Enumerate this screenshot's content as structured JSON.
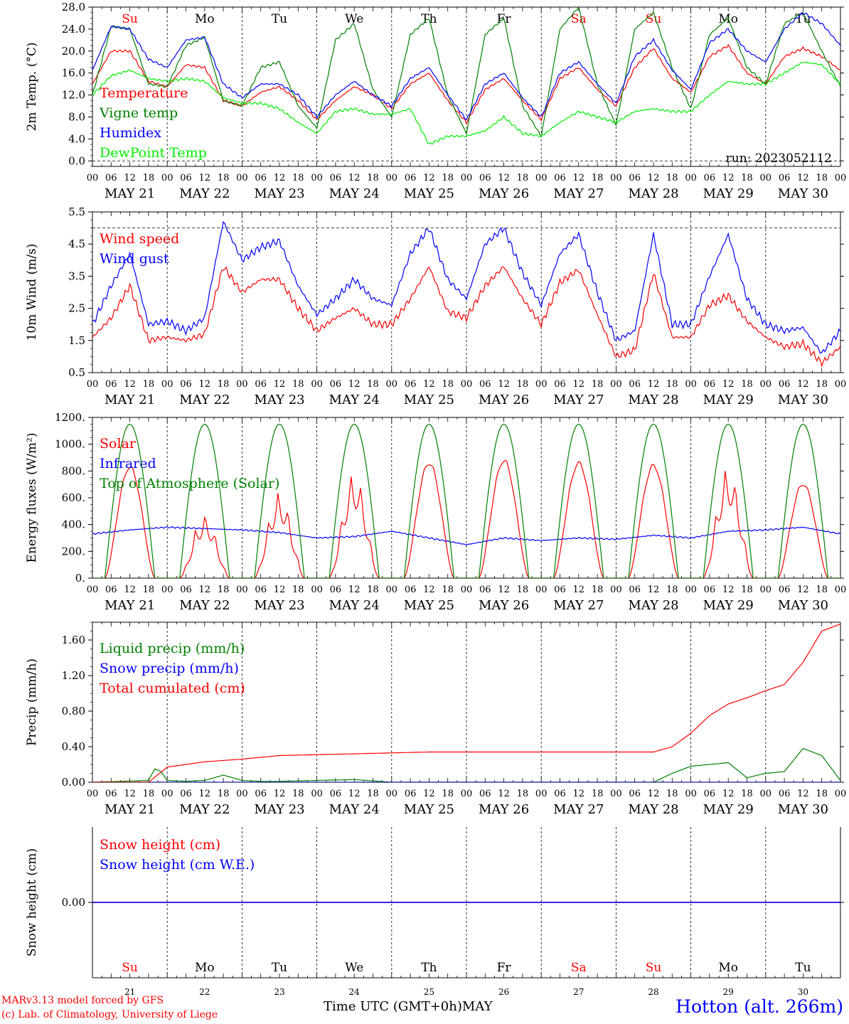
{
  "footer": {
    "model_line1": "MARv3.13 model forced by GFS",
    "model_line2": "(c) Lab. of Climatology, University of Liege",
    "time_axis_label": "Time UTC (GMT+0h)",
    "month_label": "MAY",
    "station": "Hotton (alt. 266m)"
  },
  "axis": {
    "hour_labels": [
      "00",
      "06",
      "12",
      "18"
    ],
    "date_labels": [
      "MAY 21",
      "MAY 22",
      "MAY 23",
      "MAY 24",
      "MAY 25",
      "MAY 26",
      "MAY 27",
      "MAY 28",
      "MAY 29",
      "MAY 30"
    ],
    "day_names": [
      "Su",
      "Mo",
      "Tu",
      "We",
      "Th",
      "Fr",
      "Sa",
      "Su",
      "Mo",
      "Tu"
    ],
    "day_name_colors": [
      "#ff0000",
      "#000000",
      "#000000",
      "#000000",
      "#000000",
      "#000000",
      "#ff0000",
      "#ff0000",
      "#000000",
      "#000000"
    ],
    "day_numbers": [
      "21",
      "22",
      "23",
      "24",
      "25",
      "26",
      "27",
      "28",
      "29",
      "30"
    ]
  },
  "chart_data": [
    {
      "id": "temp",
      "type": "line",
      "ylabel": "2m Temp. (°C)",
      "ylim": [
        -1,
        28
      ],
      "yticks": [
        "0.0",
        "4.0",
        "8.0",
        "12.0",
        "16.0",
        "20.0",
        "24.0",
        "28.0"
      ],
      "dashed_ref": 0,
      "annotation": "run: 2023052112",
      "show_day_names": true,
      "x_hours": [
        0,
        6,
        12,
        18,
        24,
        30,
        36,
        42,
        48,
        54,
        60,
        66,
        72,
        78,
        84,
        90,
        96,
        102,
        108,
        114,
        120,
        126,
        132,
        138,
        144,
        150,
        156,
        162,
        168,
        174,
        180,
        186,
        192,
        198,
        204,
        210,
        216,
        222,
        228,
        234,
        240
      ],
      "series": [
        {
          "name": "Temperature",
          "color": "#ff0000",
          "values": [
            14,
            20,
            20,
            14.5,
            13.5,
            17.5,
            17,
            11,
            10,
            12.5,
            13.5,
            11,
            7.5,
            11,
            13.5,
            12,
            9.5,
            14,
            16,
            11,
            7,
            13,
            15,
            11,
            7.5,
            15,
            17,
            13,
            10,
            17,
            20.5,
            15,
            12.5,
            19,
            21,
            16,
            14,
            19,
            20.5,
            19,
            16.5
          ]
        },
        {
          "name": "Vigne temp",
          "color": "#008000",
          "values": [
            12,
            24.5,
            24,
            14,
            13.5,
            21,
            22.5,
            11,
            10,
            17,
            18,
            10,
            6,
            22,
            25,
            13,
            8,
            23,
            26,
            12,
            5,
            23,
            26,
            10,
            4.5,
            24,
            28,
            14,
            6.5,
            24,
            27,
            17,
            9.5,
            23,
            26,
            17,
            14,
            25,
            27,
            20,
            13.5
          ]
        },
        {
          "name": "Humidex",
          "color": "#0000ff",
          "values": [
            16.5,
            24.5,
            24,
            18.5,
            17,
            22,
            22.5,
            14,
            11.5,
            14,
            14,
            12,
            8,
            12,
            14.5,
            12,
            10,
            15,
            17,
            12,
            7.5,
            14,
            16,
            11.5,
            8,
            16,
            18,
            14,
            10.5,
            19,
            22,
            16.5,
            13,
            21.5,
            24,
            20,
            18,
            24,
            27,
            25,
            21
          ]
        },
        {
          "name": "DewPoint Temp",
          "color": "#00ee00",
          "values": [
            12,
            15.5,
            16.5,
            15,
            14.5,
            15,
            14.5,
            11.5,
            10.5,
            10.5,
            9.5,
            7,
            5,
            9,
            9.5,
            8.5,
            8.5,
            9.5,
            3,
            4.5,
            4.5,
            5.5,
            8,
            5,
            4.5,
            7,
            9,
            8,
            7,
            9,
            9.5,
            9,
            9,
            12,
            14.5,
            14,
            14,
            16,
            18,
            17.5,
            14
          ]
        }
      ]
    },
    {
      "id": "wind",
      "type": "line",
      "ylabel": "10m Wind (m/s)",
      "ylim": [
        0.5,
        5.5
      ],
      "yticks": [
        "0.5",
        "1.5",
        "2.5",
        "3.5",
        "4.5",
        "5.5"
      ],
      "dashed_ref": 5,
      "show_day_names": false,
      "x_hours": [
        0,
        6,
        12,
        18,
        24,
        30,
        36,
        42,
        48,
        54,
        60,
        66,
        72,
        78,
        84,
        90,
        96,
        102,
        108,
        114,
        120,
        126,
        132,
        138,
        144,
        150,
        156,
        162,
        168,
        174,
        180,
        186,
        192,
        198,
        204,
        210,
        216,
        222,
        228,
        234,
        240
      ],
      "series": [
        {
          "name": "Wind speed",
          "color": "#ff0000",
          "values": [
            1.6,
            2.2,
            3.2,
            1.5,
            1.6,
            1.5,
            1.7,
            3.8,
            3,
            3.4,
            3.4,
            2.5,
            1.8,
            2.2,
            2.5,
            2,
            2,
            2.8,
            3.8,
            2.4,
            2.2,
            3.2,
            3.8,
            2.8,
            2,
            3.3,
            3.7,
            2.3,
            1,
            1.2,
            3.6,
            1.6,
            1.6,
            2.6,
            2.9,
            2.1,
            1.6,
            1.3,
            1.4,
            0.8,
            1.3
          ]
        },
        {
          "name": "Wind gust",
          "color": "#0000ff",
          "values": [
            2,
            3.2,
            4.2,
            2,
            2.1,
            1.8,
            2.2,
            5.2,
            4,
            4.4,
            4.6,
            3.2,
            2.3,
            2.8,
            3.4,
            2.8,
            2.6,
            4.2,
            5,
            3.4,
            2.8,
            4.5,
            5,
            3.6,
            2.6,
            4.2,
            4.8,
            3,
            1.5,
            1.8,
            4.8,
            2,
            2,
            3.5,
            4.8,
            2.8,
            2,
            1.8,
            1.9,
            1.1,
            1.8
          ]
        }
      ]
    },
    {
      "id": "energy",
      "type": "line",
      "ylabel": "Energy fluxes (W/m²)",
      "ylim": [
        0,
        1200
      ],
      "yticks": [
        "0.",
        "200.",
        "400.",
        "600.",
        "800.",
        "1000.",
        "1200."
      ],
      "show_day_names": false,
      "sun": {
        "rise": 4.0,
        "set": 20.0
      },
      "solar_peaks": [
        850,
        480,
        650,
        800,
        880,
        900,
        880,
        860,
        840,
        720
      ],
      "toa_peak": 1150,
      "series": [
        {
          "name": "Solar",
          "color": "#ff0000"
        },
        {
          "name": "Infrared",
          "color": "#0000ff",
          "x_hours": [
            0,
            12,
            24,
            36,
            48,
            60,
            72,
            84,
            96,
            108,
            120,
            132,
            144,
            156,
            168,
            180,
            192,
            204,
            216,
            228,
            240
          ],
          "values": [
            330,
            360,
            380,
            370,
            360,
            340,
            300,
            310,
            350,
            300,
            250,
            300,
            280,
            300,
            290,
            320,
            300,
            350,
            360,
            380,
            330
          ]
        },
        {
          "name": "Top of Atmosphere (Solar)",
          "color": "#008000"
        }
      ]
    },
    {
      "id": "precip",
      "type": "line",
      "ylabel": "Precip (mm/h)",
      "ylim": [
        0,
        1.8
      ],
      "yticks": [
        "0.00",
        "0.40",
        "0.80",
        "1.20",
        "1.60"
      ],
      "show_day_names": false,
      "series": [
        {
          "name": "Liquid precip (mm/h)",
          "color": "#008000",
          "x_hours": [
            0,
            18,
            20,
            22,
            24,
            30,
            36,
            42,
            48,
            54,
            60,
            84,
            96,
            120,
            180,
            186,
            192,
            198,
            204,
            210,
            216,
            222,
            228,
            234,
            240
          ],
          "values": [
            0,
            0.02,
            0.15,
            0.12,
            0.02,
            0.01,
            0.02,
            0.08,
            0.02,
            0.01,
            0.01,
            0.03,
            0,
            0,
            0,
            0.1,
            0.18,
            0.2,
            0.22,
            0.05,
            0.1,
            0.12,
            0.38,
            0.3,
            0.02
          ]
        },
        {
          "name": "Snow precip (mm/h)",
          "color": "#0000ff",
          "x_hours": [
            0,
            240
          ],
          "values": [
            0,
            0
          ]
        },
        {
          "name": "Total cumulated (cm)",
          "color": "#ff0000",
          "x_hours": [
            0,
            18,
            24,
            30,
            36,
            48,
            60,
            72,
            84,
            96,
            108,
            120,
            180,
            186,
            192,
            198,
            204,
            210,
            216,
            222,
            228,
            234,
            240
          ],
          "values": [
            0,
            0,
            0.17,
            0.2,
            0.23,
            0.26,
            0.3,
            0.31,
            0.32,
            0.33,
            0.34,
            0.34,
            0.34,
            0.4,
            0.55,
            0.75,
            0.88,
            0.95,
            1.03,
            1.1,
            1.35,
            1.7,
            1.78
          ]
        }
      ]
    },
    {
      "id": "snow",
      "type": "line",
      "ylabel": "Snow height (cm)",
      "ylim": [
        -1,
        1
      ],
      "yticks": [
        "0.00"
      ],
      "show_day_names": true,
      "series": [
        {
          "name": "Snow height (cm)",
          "color": "#ff0000",
          "x_hours": [
            0,
            240
          ],
          "values": [
            0,
            0
          ]
        },
        {
          "name": "Snow height (cm W.E.)",
          "color": "#0000ff",
          "x_hours": [
            0,
            240
          ],
          "values": [
            0,
            0
          ]
        }
      ]
    }
  ]
}
